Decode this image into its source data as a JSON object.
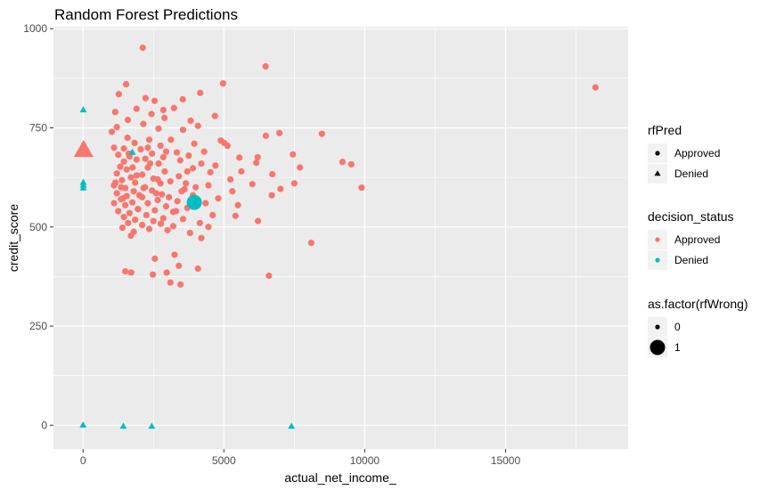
{
  "chart_data": {
    "type": "scatter",
    "title": "Random Forest Predictions",
    "xlabel": "actual_net_income_",
    "ylabel": "credit_score",
    "xlim": [
      -1050,
      19350
    ],
    "ylim": [
      -60,
      1005
    ],
    "x_ticks": [
      0,
      5000,
      10000,
      15000
    ],
    "y_ticks": [
      0,
      250,
      500,
      750,
      1000
    ],
    "grid": true,
    "legend_position": "right",
    "colors": {
      "Approved": "#F8766D",
      "Denied": "#00BFC4",
      "panel": "#EBEBEB",
      "grid": "#FFFFFF"
    },
    "legends": [
      {
        "title": "rfPred",
        "kind": "shape",
        "entries": [
          {
            "label": "Approved",
            "shape": "circle"
          },
          {
            "label": "Denied",
            "shape": "triangle"
          }
        ]
      },
      {
        "title": "decision_status",
        "kind": "color",
        "entries": [
          {
            "label": "Approved",
            "color": "#F8766D"
          },
          {
            "label": "Denied",
            "color": "#00BFC4"
          }
        ]
      },
      {
        "title": "as.factor(rfWrong)",
        "kind": "size",
        "entries": [
          {
            "label": "0",
            "size": "small"
          },
          {
            "label": "1",
            "size": "large"
          }
        ]
      }
    ],
    "series": [
      {
        "decision_status": "Approved",
        "rfPred": "Approved",
        "rfWrong": "0",
        "points": [
          [
            2120,
            952
          ],
          [
            6480,
            905
          ],
          [
            4970,
            862
          ],
          [
            18190,
            852
          ],
          [
            4160,
            838
          ],
          [
            1270,
            835
          ],
          [
            1530,
            860
          ],
          [
            2220,
            825
          ],
          [
            3540,
            822
          ],
          [
            2540,
            818
          ],
          [
            3230,
            800
          ],
          [
            1900,
            798
          ],
          [
            2850,
            795
          ],
          [
            1140,
            790
          ],
          [
            2430,
            785
          ],
          [
            4680,
            780
          ],
          [
            2890,
            775
          ],
          [
            1590,
            770
          ],
          [
            3820,
            768
          ],
          [
            2140,
            760
          ],
          [
            4080,
            755
          ],
          [
            1200,
            752
          ],
          [
            2680,
            748
          ],
          [
            3550,
            745
          ],
          [
            1020,
            740
          ],
          [
            6970,
            737
          ],
          [
            8480,
            735
          ],
          [
            6490,
            730
          ],
          [
            1580,
            725
          ],
          [
            2350,
            720
          ],
          [
            3120,
            720
          ],
          [
            4890,
            718
          ],
          [
            5010,
            712
          ],
          [
            1830,
            712
          ],
          [
            3950,
            710
          ],
          [
            2750,
            705
          ],
          [
            5130,
            705
          ],
          [
            1100,
            700
          ],
          [
            1450,
            698
          ],
          [
            2050,
            696
          ],
          [
            4300,
            690
          ],
          [
            3330,
            688
          ],
          [
            2450,
            685
          ],
          [
            1250,
            682
          ],
          [
            3750,
            680
          ],
          [
            1650,
            678
          ],
          [
            2850,
            676
          ],
          [
            5550,
            675
          ],
          [
            6200,
            676
          ],
          [
            7450,
            683
          ],
          [
            2210,
            672
          ],
          [
            1900,
            670
          ],
          [
            3450,
            668
          ],
          [
            1450,
            665
          ],
          [
            4200,
            660
          ],
          [
            9210,
            664
          ],
          [
            9520,
            658
          ],
          [
            2680,
            660
          ],
          [
            6150,
            662
          ],
          [
            7700,
            650
          ],
          [
            1320,
            652
          ],
          [
            2300,
            650
          ],
          [
            3900,
            648
          ],
          [
            1550,
            645
          ],
          [
            5620,
            640
          ],
          [
            2900,
            640
          ],
          [
            1200,
            635
          ],
          [
            2100,
            632
          ],
          [
            4520,
            638
          ],
          [
            6720,
            633
          ],
          [
            3400,
            628
          ],
          [
            1700,
            625
          ],
          [
            2500,
            622
          ],
          [
            1380,
            618
          ],
          [
            5230,
            620
          ],
          [
            7500,
            610
          ],
          [
            3100,
            615
          ],
          [
            1850,
            612
          ],
          [
            2750,
            610
          ],
          [
            6010,
            608
          ],
          [
            1100,
            605
          ],
          [
            4450,
            605
          ],
          [
            7010,
            596
          ],
          [
            9890,
            599
          ],
          [
            2200,
            600
          ],
          [
            1500,
            598
          ],
          [
            3600,
            595
          ],
          [
            2450,
            592
          ],
          [
            1800,
            590
          ],
          [
            5300,
            590
          ],
          [
            6700,
            580
          ],
          [
            1200,
            585
          ],
          [
            2800,
            582
          ],
          [
            3900,
            580
          ],
          [
            1550,
            578
          ],
          [
            2100,
            575
          ],
          [
            4800,
            572
          ],
          [
            1350,
            570
          ],
          [
            2650,
            568
          ],
          [
            3350,
            565
          ],
          [
            1750,
            562
          ],
          [
            2300,
            560
          ],
          [
            1100,
            560
          ],
          [
            4350,
            560
          ],
          [
            1500,
            555
          ],
          [
            2950,
            552
          ],
          [
            3700,
            548
          ],
          [
            1950,
            545
          ],
          [
            2550,
            542
          ],
          [
            5500,
            555
          ],
          [
            1250,
            540
          ],
          [
            3200,
            538
          ],
          [
            1650,
            535
          ],
          [
            4600,
            530
          ],
          [
            2250,
            530
          ],
          [
            5410,
            528
          ],
          [
            1450,
            525
          ],
          [
            2850,
            522
          ],
          [
            3550,
            520
          ],
          [
            1850,
            518
          ],
          [
            6210,
            515
          ],
          [
            2500,
            515
          ],
          [
            4150,
            510
          ],
          [
            1600,
            510
          ],
          [
            2100,
            505
          ],
          [
            3200,
            502
          ],
          [
            4450,
            500
          ],
          [
            1400,
            498
          ],
          [
            2350,
            495
          ],
          [
            3000,
            492
          ],
          [
            1800,
            488
          ],
          [
            3800,
            485
          ],
          [
            1700,
            478
          ],
          [
            4200,
            472
          ],
          [
            8100,
            460
          ],
          [
            3250,
            430
          ],
          [
            3400,
            402
          ],
          [
            2550,
            420
          ],
          [
            4080,
            395
          ],
          [
            2970,
            385
          ],
          [
            1500,
            388
          ],
          [
            1710,
            385
          ],
          [
            2480,
            380
          ],
          [
            6600,
            377
          ],
          [
            3100,
            360
          ],
          [
            3460,
            355
          ],
          [
            1350,
            600
          ],
          [
            2650,
            620
          ],
          [
            1900,
            630
          ],
          [
            3650,
            610
          ],
          [
            2950,
            690
          ],
          [
            4700,
            655
          ],
          [
            1150,
            612
          ],
          [
            2000,
            580
          ],
          [
            3050,
            575
          ],
          [
            2380,
            660
          ],
          [
            1620,
            685
          ],
          [
            4000,
            600
          ],
          [
            3300,
            540
          ],
          [
            2760,
            508
          ],
          [
            1950,
            545
          ],
          [
            2150,
            598
          ],
          [
            1420,
            572
          ],
          [
            2600,
            585
          ],
          [
            3500,
            590
          ],
          [
            1760,
            650
          ],
          [
            2300,
            700
          ],
          [
            3700,
            640
          ]
        ]
      },
      {
        "decision_status": "Denied",
        "rfPred": "Denied",
        "rfWrong": "0",
        "points": [
          [
            10,
            795
          ],
          [
            10,
            612
          ],
          [
            10,
            605
          ],
          [
            10,
            598
          ],
          [
            1750,
            688
          ],
          [
            0,
            0
          ],
          [
            1430,
            -3
          ],
          [
            2440,
            -3
          ],
          [
            7400,
            -3
          ]
        ]
      },
      {
        "decision_status": "Approved",
        "rfPred": "Denied",
        "rfWrong": "1",
        "points": [
          [
            20,
            693
          ]
        ]
      },
      {
        "decision_status": "Denied",
        "rfPred": "Approved",
        "rfWrong": "1",
        "points": [
          [
            3950,
            562
          ]
        ]
      }
    ]
  }
}
